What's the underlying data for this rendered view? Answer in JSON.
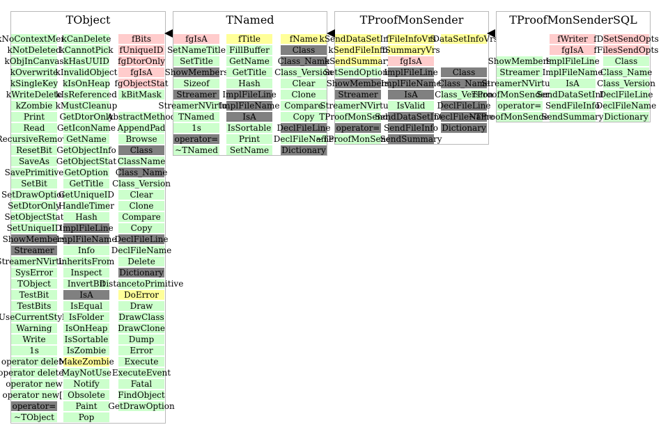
{
  "colors": {
    "public": "#ccffcc",
    "private": "#ffcccc",
    "protected": "#ffff99",
    "gray": "#808080",
    "border": "#b8b8b8"
  },
  "classes": [
    {
      "name": "TObject",
      "columns": [
        {
          "members": [
            {
              "label": "kNoContextMenu",
              "kind": "public"
            },
            {
              "label": "kNotDeleted",
              "kind": "public"
            },
            {
              "label": "kObjInCanvas",
              "kind": "public"
            },
            {
              "label": "kOverwrite",
              "kind": "public"
            },
            {
              "label": "kSingleKey",
              "kind": "public"
            },
            {
              "label": "kWriteDelete",
              "kind": "public"
            },
            {
              "label": "kZombie",
              "kind": "public"
            },
            {
              "label": "Print",
              "kind": "public"
            },
            {
              "label": "Read",
              "kind": "public"
            },
            {
              "label": "RecursiveRemove",
              "kind": "public"
            },
            {
              "label": "ResetBit",
              "kind": "public"
            },
            {
              "label": "SaveAs",
              "kind": "public"
            },
            {
              "label": "SavePrimitive",
              "kind": "public"
            },
            {
              "label": "SetBit",
              "kind": "public"
            },
            {
              "label": "SetDrawOption",
              "kind": "public"
            },
            {
              "label": "SetDtorOnly",
              "kind": "public"
            },
            {
              "label": "SetObjectStat",
              "kind": "public"
            },
            {
              "label": "SetUniqueID",
              "kind": "public"
            },
            {
              "label": "ShowMembers",
              "kind": "gray"
            },
            {
              "label": "Streamer",
              "kind": "gray"
            },
            {
              "label": "StreamerNVirtual",
              "kind": "public"
            },
            {
              "label": "SysError",
              "kind": "public"
            },
            {
              "label": "TObject",
              "kind": "public"
            },
            {
              "label": "TestBit",
              "kind": "public"
            },
            {
              "label": "TestBits",
              "kind": "public"
            },
            {
              "label": "UseCurrentStyle",
              "kind": "public"
            },
            {
              "label": "Warning",
              "kind": "public"
            },
            {
              "label": "Write",
              "kind": "public"
            },
            {
              "label": "1s",
              "kind": "public"
            },
            {
              "label": "operator delete",
              "kind": "public"
            },
            {
              "label": "operator delete[]",
              "kind": "public"
            },
            {
              "label": "operator new",
              "kind": "public"
            },
            {
              "label": "operator new[]",
              "kind": "public"
            },
            {
              "label": "operator=",
              "kind": "gray"
            },
            {
              "label": "~TObject",
              "kind": "public"
            }
          ]
        },
        {
          "members": [
            {
              "label": "kCanDelete",
              "kind": "public"
            },
            {
              "label": "kCannotPick",
              "kind": "public"
            },
            {
              "label": "kHasUUID",
              "kind": "public"
            },
            {
              "label": "kInvalidObject",
              "kind": "public"
            },
            {
              "label": "kIsOnHeap",
              "kind": "public"
            },
            {
              "label": "kIsReferenced",
              "kind": "public"
            },
            {
              "label": "kMustCleanup",
              "kind": "public"
            },
            {
              "label": "GetDtorOnly",
              "kind": "public"
            },
            {
              "label": "GetIconName",
              "kind": "public"
            },
            {
              "label": "GetName",
              "kind": "public"
            },
            {
              "label": "GetObjectInfo",
              "kind": "public"
            },
            {
              "label": "GetObjectStat",
              "kind": "public"
            },
            {
              "label": "GetOption",
              "kind": "public"
            },
            {
              "label": "GetTitle",
              "kind": "public"
            },
            {
              "label": "GetUniqueID",
              "kind": "public"
            },
            {
              "label": "HandleTimer",
              "kind": "public"
            },
            {
              "label": "Hash",
              "kind": "public"
            },
            {
              "label": "ImplFileLine",
              "kind": "gray"
            },
            {
              "label": "ImplFileName",
              "kind": "gray"
            },
            {
              "label": "Info",
              "kind": "public"
            },
            {
              "label": "InheritsFrom",
              "kind": "public"
            },
            {
              "label": "Inspect",
              "kind": "public"
            },
            {
              "label": "InvertBit",
              "kind": "public"
            },
            {
              "label": "IsA",
              "kind": "gray"
            },
            {
              "label": "IsEqual",
              "kind": "public"
            },
            {
              "label": "IsFolder",
              "kind": "public"
            },
            {
              "label": "IsOnHeap",
              "kind": "public"
            },
            {
              "label": "IsSortable",
              "kind": "public"
            },
            {
              "label": "IsZombie",
              "kind": "public"
            },
            {
              "label": "MakeZombie",
              "kind": "protected"
            },
            {
              "label": "MayNotUse",
              "kind": "public"
            },
            {
              "label": "Notify",
              "kind": "public"
            },
            {
              "label": "Obsolete",
              "kind": "public"
            },
            {
              "label": "Paint",
              "kind": "public"
            },
            {
              "label": "Pop",
              "kind": "public"
            }
          ]
        },
        {
          "members": [
            {
              "label": "fBits",
              "kind": "private"
            },
            {
              "label": "fUniqueID",
              "kind": "private"
            },
            {
              "label": "fgDtorOnly",
              "kind": "private"
            },
            {
              "label": "fgIsA",
              "kind": "private"
            },
            {
              "label": "fgObjectStat",
              "kind": "private"
            },
            {
              "label": "kBitMask",
              "kind": "public"
            },
            {
              "label": "",
              "kind": "none"
            },
            {
              "label": "AbstractMethod",
              "kind": "public"
            },
            {
              "label": "AppendPad",
              "kind": "public"
            },
            {
              "label": "Browse",
              "kind": "public"
            },
            {
              "label": "Class",
              "kind": "gray"
            },
            {
              "label": "ClassName",
              "kind": "public"
            },
            {
              "label": "Class_Name",
              "kind": "gray"
            },
            {
              "label": "Class_Version",
              "kind": "public"
            },
            {
              "label": "Clear",
              "kind": "public"
            },
            {
              "label": "Clone",
              "kind": "public"
            },
            {
              "label": "Compare",
              "kind": "public"
            },
            {
              "label": "Copy",
              "kind": "public"
            },
            {
              "label": "DeclFileLine",
              "kind": "gray"
            },
            {
              "label": "DeclFileName",
              "kind": "public"
            },
            {
              "label": "Delete",
              "kind": "public"
            },
            {
              "label": "Dictionary",
              "kind": "gray"
            },
            {
              "label": "DistancetoPrimitive",
              "kind": "public"
            },
            {
              "label": "DoError",
              "kind": "protected"
            },
            {
              "label": "Draw",
              "kind": "public"
            },
            {
              "label": "DrawClass",
              "kind": "public"
            },
            {
              "label": "DrawClone",
              "kind": "public"
            },
            {
              "label": "Dump",
              "kind": "public"
            },
            {
              "label": "Error",
              "kind": "public"
            },
            {
              "label": "Execute",
              "kind": "public"
            },
            {
              "label": "ExecuteEvent",
              "kind": "public"
            },
            {
              "label": "Fatal",
              "kind": "public"
            },
            {
              "label": "FindObject",
              "kind": "public"
            },
            {
              "label": "GetDrawOption",
              "kind": "public"
            }
          ]
        }
      ]
    },
    {
      "name": "TNamed",
      "columns": [
        {
          "members": [
            {
              "label": "fgIsA",
              "kind": "private"
            },
            {
              "label": "SetNameTitle",
              "kind": "public"
            },
            {
              "label": "SetTitle",
              "kind": "public"
            },
            {
              "label": "ShowMembers",
              "kind": "gray"
            },
            {
              "label": "Sizeof",
              "kind": "public"
            },
            {
              "label": "Streamer",
              "kind": "gray"
            },
            {
              "label": "StreamerNVirtual",
              "kind": "public"
            },
            {
              "label": "TNamed",
              "kind": "public"
            },
            {
              "label": "1s",
              "kind": "public"
            },
            {
              "label": "operator=",
              "kind": "gray"
            },
            {
              "label": "~TNamed",
              "kind": "public"
            }
          ]
        },
        {
          "members": [
            {
              "label": "fTitle",
              "kind": "protected"
            },
            {
              "label": "FillBuffer",
              "kind": "public"
            },
            {
              "label": "GetName",
              "kind": "public"
            },
            {
              "label": "GetTitle",
              "kind": "public"
            },
            {
              "label": "Hash",
              "kind": "public"
            },
            {
              "label": "ImplFileLine",
              "kind": "gray"
            },
            {
              "label": "ImplFileName",
              "kind": "gray"
            },
            {
              "label": "IsA",
              "kind": "gray"
            },
            {
              "label": "IsSortable",
              "kind": "public"
            },
            {
              "label": "Print",
              "kind": "public"
            },
            {
              "label": "SetName",
              "kind": "public"
            }
          ]
        },
        {
          "members": [
            {
              "label": "fName",
              "kind": "protected"
            },
            {
              "label": "Class",
              "kind": "gray"
            },
            {
              "label": "Class_Name",
              "kind": "gray"
            },
            {
              "label": "Class_Version",
              "kind": "public"
            },
            {
              "label": "Clear",
              "kind": "public"
            },
            {
              "label": "Clone",
              "kind": "public"
            },
            {
              "label": "Compare",
              "kind": "public"
            },
            {
              "label": "Copy",
              "kind": "public"
            },
            {
              "label": "DeclFileLine",
              "kind": "gray"
            },
            {
              "label": "DeclFileName",
              "kind": "public"
            },
            {
              "label": "Dictionary",
              "kind": "gray"
            }
          ]
        }
      ]
    },
    {
      "name": "TProofMonSender",
      "columns": [
        {
          "members": [
            {
              "label": "kSendDataSetInfo",
              "kind": "protected"
            },
            {
              "label": "kSendFileInfo",
              "kind": "protected"
            },
            {
              "label": "kSendSummary",
              "kind": "protected"
            },
            {
              "label": "SetSendOptions",
              "kind": "public"
            },
            {
              "label": "ShowMembers",
              "kind": "gray"
            },
            {
              "label": "Streamer",
              "kind": "gray"
            },
            {
              "label": "StreamerNVirtual",
              "kind": "public"
            },
            {
              "label": "TProofMonSender",
              "kind": "public"
            },
            {
              "label": "operator=",
              "kind": "gray"
            },
            {
              "label": "~TProofMonSender",
              "kind": "public"
            }
          ]
        },
        {
          "members": [
            {
              "label": "fFileInfoVrs",
              "kind": "protected"
            },
            {
              "label": "fSummaryVrs",
              "kind": "protected"
            },
            {
              "label": "fgIsA",
              "kind": "private"
            },
            {
              "label": "ImplFileLine",
              "kind": "gray"
            },
            {
              "label": "ImplFileName",
              "kind": "gray"
            },
            {
              "label": "IsA",
              "kind": "gray"
            },
            {
              "label": "IsValid",
              "kind": "public"
            },
            {
              "label": "SendDataSetInfo",
              "kind": "gray"
            },
            {
              "label": "SendFileInfo",
              "kind": "gray"
            },
            {
              "label": "SendSummary",
              "kind": "gray"
            }
          ]
        },
        {
          "members": [
            {
              "label": "fDataSetInfoVrs",
              "kind": "protected"
            },
            {
              "label": "",
              "kind": "none"
            },
            {
              "label": "",
              "kind": "none"
            },
            {
              "label": "Class",
              "kind": "gray"
            },
            {
              "label": "Class_Name",
              "kind": "gray"
            },
            {
              "label": "Class_Version",
              "kind": "public"
            },
            {
              "label": "DeclFileLine",
              "kind": "gray"
            },
            {
              "label": "DeclFileName",
              "kind": "gray"
            },
            {
              "label": "Dictionary",
              "kind": "gray"
            }
          ]
        }
      ]
    },
    {
      "name": "TProofMonSenderSQL",
      "columns": [
        {
          "members": [
            {
              "label": "",
              "kind": "none"
            },
            {
              "label": "",
              "kind": "none"
            },
            {
              "label": "ShowMembers",
              "kind": "public"
            },
            {
              "label": "Streamer",
              "kind": "public"
            },
            {
              "label": "StreamerNVirtual",
              "kind": "public"
            },
            {
              "label": "TProofMonSenderSQL",
              "kind": "public"
            },
            {
              "label": "operator=",
              "kind": "public"
            },
            {
              "label": "~TProofMonSenderSQL",
              "kind": "public"
            }
          ]
        },
        {
          "members": [
            {
              "label": "fWriter",
              "kind": "private"
            },
            {
              "label": "fgIsA",
              "kind": "private"
            },
            {
              "label": "ImplFileLine",
              "kind": "public"
            },
            {
              "label": "ImplFileName",
              "kind": "public"
            },
            {
              "label": "IsA",
              "kind": "public"
            },
            {
              "label": "SendDataSetInfo",
              "kind": "public"
            },
            {
              "label": "SendFileInfo",
              "kind": "public"
            },
            {
              "label": "SendSummary",
              "kind": "public"
            }
          ]
        },
        {
          "members": [
            {
              "label": "fDSetSendOpts",
              "kind": "private"
            },
            {
              "label": "fFilesSendOpts",
              "kind": "private"
            },
            {
              "label": "Class",
              "kind": "public"
            },
            {
              "label": "Class_Name",
              "kind": "public"
            },
            {
              "label": "Class_Version",
              "kind": "public"
            },
            {
              "label": "DeclFileLine",
              "kind": "public"
            },
            {
              "label": "DeclFileName",
              "kind": "public"
            },
            {
              "label": "Dictionary",
              "kind": "public"
            }
          ]
        }
      ]
    }
  ]
}
